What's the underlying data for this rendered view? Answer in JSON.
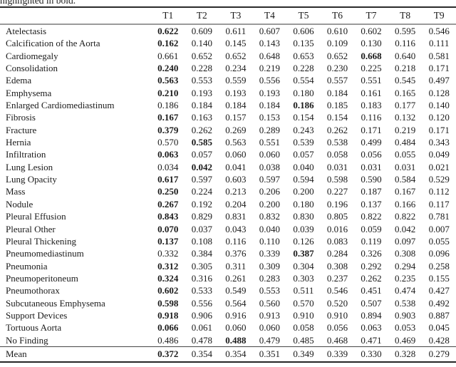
{
  "caption_fragment": "highlighted in bold.",
  "table": {
    "columns": [
      "T1",
      "T2",
      "T3",
      "T4",
      "T5",
      "T6",
      "T7",
      "T8",
      "T9"
    ],
    "rows": [
      {
        "label": "Atelectasis",
        "values": [
          "0.622",
          "0.609",
          "0.611",
          "0.607",
          "0.606",
          "0.610",
          "0.602",
          "0.595",
          "0.546"
        ],
        "bold_index": 0
      },
      {
        "label": "Calcification of the Aorta",
        "values": [
          "0.162",
          "0.140",
          "0.145",
          "0.143",
          "0.135",
          "0.109",
          "0.130",
          "0.116",
          "0.111"
        ],
        "bold_index": 0
      },
      {
        "label": "Cardiomegaly",
        "values": [
          "0.661",
          "0.652",
          "0.652",
          "0.648",
          "0.653",
          "0.652",
          "0.668",
          "0.640",
          "0.581"
        ],
        "bold_index": 6
      },
      {
        "label": "Consolidation",
        "values": [
          "0.240",
          "0.228",
          "0.234",
          "0.219",
          "0.228",
          "0.230",
          "0.225",
          "0.218",
          "0.171"
        ],
        "bold_index": 0
      },
      {
        "label": "Edema",
        "values": [
          "0.563",
          "0.553",
          "0.559",
          "0.556",
          "0.554",
          "0.557",
          "0.551",
          "0.545",
          "0.497"
        ],
        "bold_index": 0
      },
      {
        "label": "Emphysema",
        "values": [
          "0.210",
          "0.193",
          "0.193",
          "0.193",
          "0.180",
          "0.184",
          "0.161",
          "0.165",
          "0.128"
        ],
        "bold_index": 0
      },
      {
        "label": "Enlarged Cardiomediastinum",
        "values": [
          "0.186",
          "0.184",
          "0.184",
          "0.184",
          "0.186",
          "0.185",
          "0.183",
          "0.177",
          "0.140"
        ],
        "bold_index": 4
      },
      {
        "label": "Fibrosis",
        "values": [
          "0.167",
          "0.163",
          "0.157",
          "0.153",
          "0.154",
          "0.154",
          "0.116",
          "0.132",
          "0.120"
        ],
        "bold_index": 0
      },
      {
        "label": "Fracture",
        "values": [
          "0.379",
          "0.262",
          "0.269",
          "0.289",
          "0.243",
          "0.262",
          "0.171",
          "0.219",
          "0.171"
        ],
        "bold_index": 0
      },
      {
        "label": "Hernia",
        "values": [
          "0.570",
          "0.585",
          "0.563",
          "0.551",
          "0.539",
          "0.538",
          "0.499",
          "0.484",
          "0.343"
        ],
        "bold_index": 1
      },
      {
        "label": "Infiltration",
        "values": [
          "0.063",
          "0.057",
          "0.060",
          "0.060",
          "0.057",
          "0.058",
          "0.056",
          "0.055",
          "0.049"
        ],
        "bold_index": 0
      },
      {
        "label": "Lung Lesion",
        "values": [
          "0.034",
          "0.042",
          "0.041",
          "0.038",
          "0.040",
          "0.031",
          "0.031",
          "0.031",
          "0.021"
        ],
        "bold_index": 1
      },
      {
        "label": "Lung Opacity",
        "values": [
          "0.617",
          "0.597",
          "0.603",
          "0.597",
          "0.594",
          "0.598",
          "0.590",
          "0.584",
          "0.529"
        ],
        "bold_index": 0
      },
      {
        "label": "Mass",
        "values": [
          "0.250",
          "0.224",
          "0.213",
          "0.206",
          "0.200",
          "0.227",
          "0.187",
          "0.167",
          "0.112"
        ],
        "bold_index": 0
      },
      {
        "label": "Nodule",
        "values": [
          "0.267",
          "0.192",
          "0.204",
          "0.200",
          "0.180",
          "0.196",
          "0.137",
          "0.166",
          "0.117"
        ],
        "bold_index": 0
      },
      {
        "label": "Pleural Effusion",
        "values": [
          "0.843",
          "0.829",
          "0.831",
          "0.832",
          "0.830",
          "0.805",
          "0.822",
          "0.822",
          "0.781"
        ],
        "bold_index": 0
      },
      {
        "label": "Pleural Other",
        "values": [
          "0.070",
          "0.037",
          "0.043",
          "0.040",
          "0.039",
          "0.016",
          "0.059",
          "0.042",
          "0.007"
        ],
        "bold_index": 0
      },
      {
        "label": "Pleural Thickening",
        "values": [
          "0.137",
          "0.108",
          "0.116",
          "0.110",
          "0.126",
          "0.083",
          "0.119",
          "0.097",
          "0.055"
        ],
        "bold_index": 0
      },
      {
        "label": "Pneumomediastinum",
        "values": [
          "0.332",
          "0.384",
          "0.376",
          "0.339",
          "0.387",
          "0.284",
          "0.326",
          "0.308",
          "0.096"
        ],
        "bold_index": 4
      },
      {
        "label": "Pneumonia",
        "values": [
          "0.312",
          "0.305",
          "0.311",
          "0.309",
          "0.304",
          "0.308",
          "0.292",
          "0.294",
          "0.258"
        ],
        "bold_index": 0
      },
      {
        "label": "Pneumoperitoneum",
        "values": [
          "0.324",
          "0.316",
          "0.261",
          "0.283",
          "0.303",
          "0.237",
          "0.262",
          "0.235",
          "0.155"
        ],
        "bold_index": 0
      },
      {
        "label": "Pneumothorax",
        "values": [
          "0.602",
          "0.533",
          "0.549",
          "0.553",
          "0.511",
          "0.546",
          "0.451",
          "0.474",
          "0.427"
        ],
        "bold_index": 0
      },
      {
        "label": "Subcutaneous Emphysema",
        "values": [
          "0.598",
          "0.556",
          "0.564",
          "0.560",
          "0.570",
          "0.520",
          "0.507",
          "0.538",
          "0.492"
        ],
        "bold_index": 0
      },
      {
        "label": "Support Devices",
        "values": [
          "0.918",
          "0.906",
          "0.916",
          "0.913",
          "0.910",
          "0.910",
          "0.894",
          "0.903",
          "0.887"
        ],
        "bold_index": 0
      },
      {
        "label": "Tortuous Aorta",
        "values": [
          "0.066",
          "0.061",
          "0.060",
          "0.060",
          "0.058",
          "0.056",
          "0.063",
          "0.053",
          "0.045"
        ],
        "bold_index": 0
      },
      {
        "label": "No Finding",
        "values": [
          "0.486",
          "0.478",
          "0.488",
          "0.479",
          "0.485",
          "0.468",
          "0.471",
          "0.469",
          "0.428"
        ],
        "bold_index": 2
      }
    ],
    "mean_row": {
      "label": "Mean",
      "values": [
        "0.372",
        "0.354",
        "0.354",
        "0.351",
        "0.349",
        "0.339",
        "0.330",
        "0.328",
        "0.279"
      ],
      "bold_index": 0
    }
  }
}
